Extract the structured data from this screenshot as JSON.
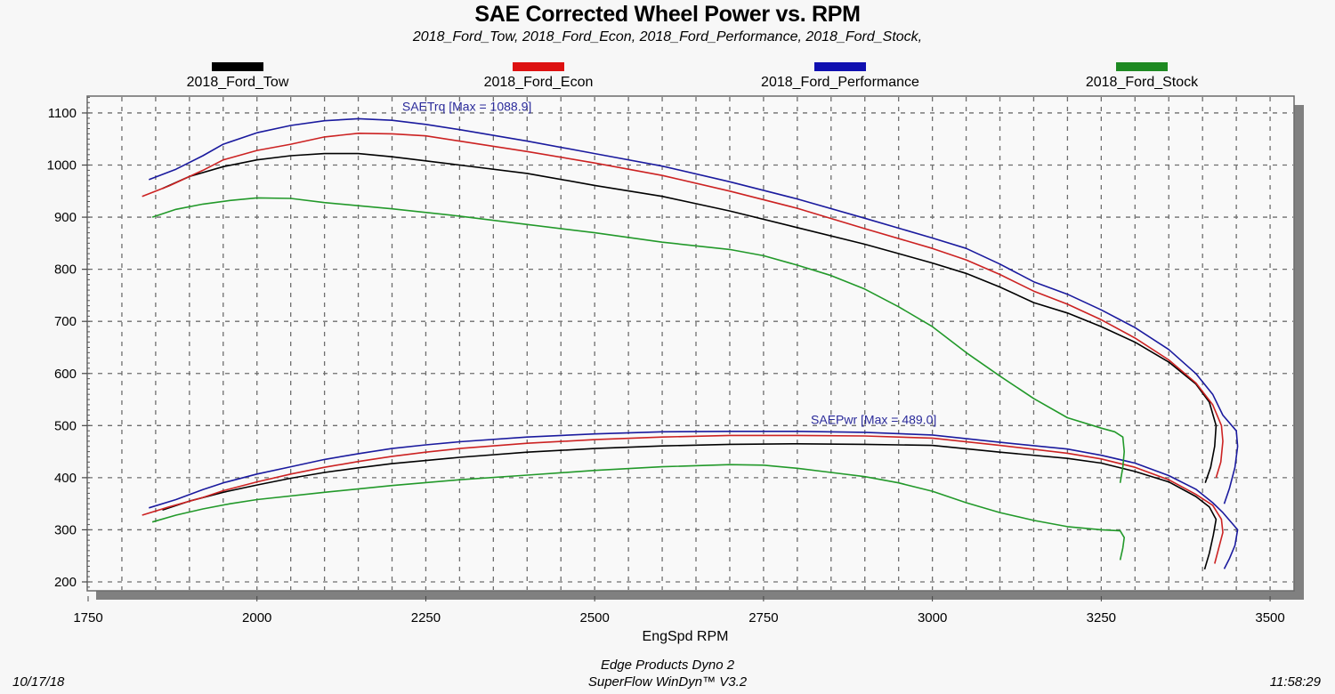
{
  "chart_data": {
    "type": "line",
    "title": "SAE Corrected Wheel Power vs. RPM",
    "subtitle": "2018_Ford_Tow, 2018_Ford_Econ, 2018_Ford_Performance, 2018_Ford_Stock,",
    "xlabel": "EngSpd RPM",
    "ylabel": "",
    "xlim": [
      1750,
      3550
    ],
    "ylim": [
      180,
      1150
    ],
    "x_ticks": [
      1750,
      2000,
      2250,
      2500,
      2750,
      3000,
      3250,
      3500
    ],
    "y_ticks": [
      200,
      300,
      400,
      500,
      600,
      700,
      800,
      900,
      1000,
      1100
    ],
    "grid": true,
    "x_minor_step": 50,
    "legend_position": "top",
    "annotations": [
      {
        "text": "SAETrq [Max = 1088.9]",
        "x": 2215,
        "y": 1104
      },
      {
        "text": "SAEPwr [Max = 489.0]",
        "x": 2820,
        "y": 503
      }
    ],
    "series": [
      {
        "name": "2018_Ford_Tow",
        "color": "#000000",
        "torque": [
          [
            1860,
            955
          ],
          [
            1900,
            978
          ],
          [
            1950,
            997
          ],
          [
            2000,
            1010
          ],
          [
            2050,
            1018
          ],
          [
            2100,
            1022
          ],
          [
            2150,
            1022
          ],
          [
            2200,
            1016
          ],
          [
            2250,
            1008
          ],
          [
            2300,
            1000
          ],
          [
            2400,
            984
          ],
          [
            2500,
            961
          ],
          [
            2600,
            940
          ],
          [
            2700,
            912
          ],
          [
            2800,
            880
          ],
          [
            2900,
            848
          ],
          [
            3000,
            812
          ],
          [
            3050,
            792
          ],
          [
            3100,
            766
          ],
          [
            3150,
            736
          ],
          [
            3200,
            716
          ],
          [
            3250,
            690
          ],
          [
            3300,
            660
          ],
          [
            3350,
            622
          ],
          [
            3390,
            580
          ],
          [
            3410,
            545
          ],
          [
            3420,
            500
          ],
          [
            3418,
            460
          ],
          [
            3412,
            420
          ],
          [
            3404,
            390
          ]
        ],
        "power": [
          [
            1860,
            338
          ],
          [
            1900,
            355
          ],
          [
            1950,
            372
          ],
          [
            2000,
            386
          ],
          [
            2050,
            399
          ],
          [
            2100,
            410
          ],
          [
            2150,
            419
          ],
          [
            2200,
            427
          ],
          [
            2250,
            433
          ],
          [
            2300,
            439
          ],
          [
            2400,
            449
          ],
          [
            2500,
            456
          ],
          [
            2600,
            461
          ],
          [
            2700,
            464
          ],
          [
            2800,
            465
          ],
          [
            2900,
            464
          ],
          [
            3000,
            462
          ],
          [
            3100,
            449
          ],
          [
            3200,
            437
          ],
          [
            3250,
            428
          ],
          [
            3300,
            412
          ],
          [
            3350,
            392
          ],
          [
            3390,
            364
          ],
          [
            3410,
            344
          ],
          [
            3420,
            320
          ],
          [
            3416,
            290
          ],
          [
            3410,
            255
          ],
          [
            3403,
            224
          ]
        ]
      },
      {
        "name": "2018_Ford_Econ",
        "color": "#cc2222",
        "torque": [
          [
            1830,
            940
          ],
          [
            1870,
            960
          ],
          [
            1920,
            990
          ],
          [
            1950,
            1010
          ],
          [
            2000,
            1028
          ],
          [
            2050,
            1040
          ],
          [
            2100,
            1054
          ],
          [
            2150,
            1061
          ],
          [
            2200,
            1060
          ],
          [
            2250,
            1056
          ],
          [
            2300,
            1046
          ],
          [
            2400,
            1026
          ],
          [
            2500,
            1004
          ],
          [
            2600,
            980
          ],
          [
            2700,
            950
          ],
          [
            2800,
            917
          ],
          [
            2900,
            878
          ],
          [
            3000,
            840
          ],
          [
            3050,
            818
          ],
          [
            3100,
            790
          ],
          [
            3150,
            758
          ],
          [
            3200,
            733
          ],
          [
            3250,
            703
          ],
          [
            3300,
            668
          ],
          [
            3350,
            626
          ],
          [
            3390,
            582
          ],
          [
            3415,
            540
          ],
          [
            3428,
            500
          ],
          [
            3430,
            470
          ],
          [
            3427,
            430
          ],
          [
            3420,
            400
          ]
        ],
        "power": [
          [
            1830,
            328
          ],
          [
            1870,
            344
          ],
          [
            1920,
            362
          ],
          [
            1950,
            375
          ],
          [
            2000,
            392
          ],
          [
            2050,
            407
          ],
          [
            2100,
            420
          ],
          [
            2150,
            431
          ],
          [
            2200,
            441
          ],
          [
            2250,
            449
          ],
          [
            2300,
            456
          ],
          [
            2400,
            466
          ],
          [
            2500,
            473
          ],
          [
            2600,
            478
          ],
          [
            2700,
            481
          ],
          [
            2800,
            481
          ],
          [
            2900,
            480
          ],
          [
            3000,
            476
          ],
          [
            3100,
            462
          ],
          [
            3200,
            447
          ],
          [
            3250,
            436
          ],
          [
            3300,
            420
          ],
          [
            3350,
            396
          ],
          [
            3390,
            368
          ],
          [
            3415,
            347
          ],
          [
            3428,
            320
          ],
          [
            3430,
            295
          ],
          [
            3424,
            265
          ],
          [
            3418,
            235
          ]
        ]
      },
      {
        "name": "2018_Ford_Performance",
        "color": "#1a1a9e",
        "torque": [
          [
            1840,
            972
          ],
          [
            1880,
            992
          ],
          [
            1920,
            1018
          ],
          [
            1950,
            1040
          ],
          [
            2000,
            1062
          ],
          [
            2050,
            1076
          ],
          [
            2100,
            1085
          ],
          [
            2150,
            1089
          ],
          [
            2200,
            1086
          ],
          [
            2250,
            1078
          ],
          [
            2300,
            1068
          ],
          [
            2400,
            1046
          ],
          [
            2500,
            1022
          ],
          [
            2600,
            998
          ],
          [
            2700,
            968
          ],
          [
            2800,
            935
          ],
          [
            2900,
            898
          ],
          [
            3000,
            860
          ],
          [
            3050,
            840
          ],
          [
            3100,
            810
          ],
          [
            3150,
            776
          ],
          [
            3200,
            752
          ],
          [
            3250,
            722
          ],
          [
            3300,
            688
          ],
          [
            3350,
            646
          ],
          [
            3390,
            600
          ],
          [
            3415,
            560
          ],
          [
            3430,
            520
          ],
          [
            3450,
            490
          ],
          [
            3452,
            460
          ],
          [
            3448,
            420
          ],
          [
            3440,
            380
          ],
          [
            3432,
            350
          ]
        ],
        "power": [
          [
            1840,
            342
          ],
          [
            1880,
            358
          ],
          [
            1920,
            377
          ],
          [
            1950,
            390
          ],
          [
            2000,
            407
          ],
          [
            2050,
            421
          ],
          [
            2100,
            435
          ],
          [
            2150,
            446
          ],
          [
            2200,
            456
          ],
          [
            2250,
            463
          ],
          [
            2300,
            469
          ],
          [
            2400,
            478
          ],
          [
            2500,
            484
          ],
          [
            2600,
            488
          ],
          [
            2700,
            489
          ],
          [
            2800,
            489
          ],
          [
            2900,
            487
          ],
          [
            3000,
            482
          ],
          [
            3100,
            468
          ],
          [
            3200,
            455
          ],
          [
            3250,
            443
          ],
          [
            3300,
            428
          ],
          [
            3350,
            404
          ],
          [
            3390,
            378
          ],
          [
            3415,
            352
          ],
          [
            3430,
            333
          ],
          [
            3452,
            300
          ],
          [
            3448,
            270
          ],
          [
            3440,
            245
          ],
          [
            3432,
            225
          ]
        ]
      },
      {
        "name": "2018_Ford_Stock",
        "color": "#22992a",
        "torque": [
          [
            1845,
            900
          ],
          [
            1880,
            915
          ],
          [
            1920,
            925
          ],
          [
            1960,
            932
          ],
          [
            2000,
            937
          ],
          [
            2050,
            936
          ],
          [
            2100,
            928
          ],
          [
            2200,
            916
          ],
          [
            2300,
            902
          ],
          [
            2400,
            886
          ],
          [
            2500,
            870
          ],
          [
            2600,
            852
          ],
          [
            2700,
            838
          ],
          [
            2750,
            826
          ],
          [
            2800,
            808
          ],
          [
            2850,
            788
          ],
          [
            2900,
            762
          ],
          [
            2950,
            728
          ],
          [
            3000,
            690
          ],
          [
            3050,
            640
          ],
          [
            3100,
            595
          ],
          [
            3150,
            552
          ],
          [
            3200,
            515
          ],
          [
            3250,
            495
          ],
          [
            3270,
            488
          ],
          [
            3282,
            478
          ],
          [
            3284,
            450
          ],
          [
            3282,
            420
          ],
          [
            3278,
            390
          ]
        ],
        "power": [
          [
            1845,
            315
          ],
          [
            1880,
            328
          ],
          [
            1920,
            340
          ],
          [
            1960,
            350
          ],
          [
            2000,
            358
          ],
          [
            2100,
            372
          ],
          [
            2200,
            385
          ],
          [
            2300,
            396
          ],
          [
            2400,
            405
          ],
          [
            2500,
            414
          ],
          [
            2600,
            421
          ],
          [
            2700,
            425
          ],
          [
            2750,
            424
          ],
          [
            2800,
            418
          ],
          [
            2850,
            410
          ],
          [
            2900,
            402
          ],
          [
            2950,
            390
          ],
          [
            3000,
            374
          ],
          [
            3050,
            352
          ],
          [
            3100,
            333
          ],
          [
            3150,
            318
          ],
          [
            3200,
            306
          ],
          [
            3250,
            300
          ],
          [
            3278,
            298
          ],
          [
            3284,
            285
          ],
          [
            3282,
            265
          ],
          [
            3278,
            242
          ]
        ]
      }
    ]
  },
  "footer": {
    "line1": "Edge Products Dyno 2",
    "line2": "SuperFlow WinDyn™ V3.2",
    "date": "10/17/18",
    "time": "11:58:29"
  }
}
